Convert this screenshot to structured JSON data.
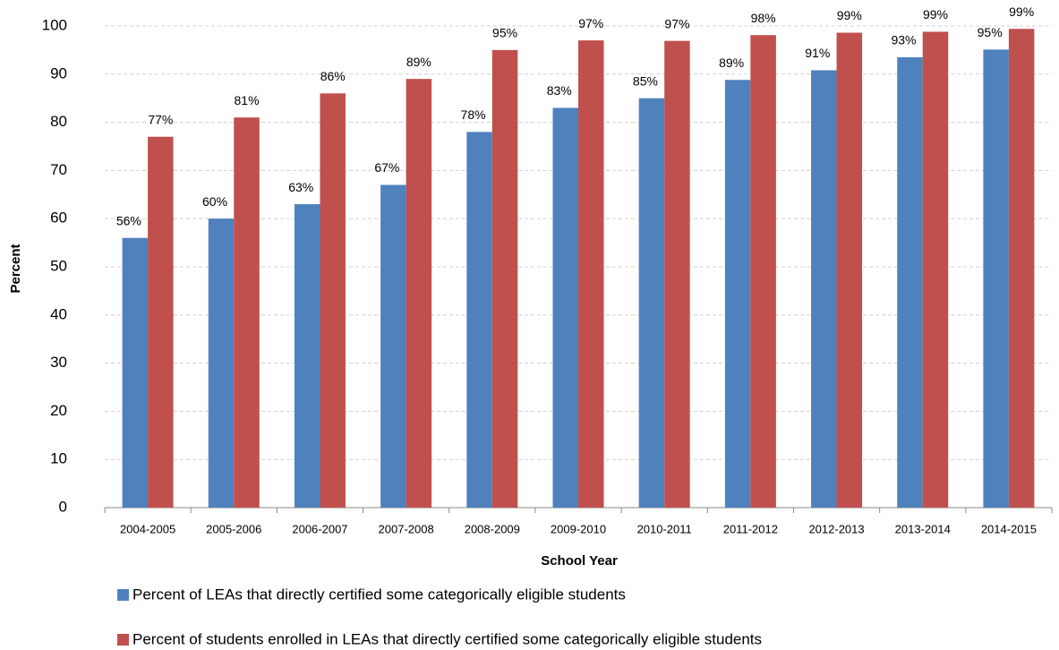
{
  "chart_data": {
    "type": "bar",
    "x_label": "School Year",
    "y_label": "Percent",
    "categories": [
      "2004-2005",
      "2005-2006",
      "2006-2007",
      "2007-2008",
      "2008-2009",
      "2009-2010",
      "2010-2011",
      "2011-2012",
      "2012-2013",
      "2013-2014",
      "2014-2015"
    ],
    "series": [
      {
        "name": "Percent of LEAs that directly certified some categorically eligible students",
        "color": "#4f81bd",
        "values": [
          56,
          60,
          63,
          67,
          78,
          83,
          85,
          88.8,
          90.8,
          93.5,
          95.1
        ],
        "value_labels": [
          "56%",
          "60%",
          "63%",
          "67%",
          "78%",
          "83%",
          "85%",
          "89%",
          "91%",
          "93%",
          "95%"
        ]
      },
      {
        "name": "Percent of students enrolled in LEAs that directly certified some categorically eligible students",
        "color": "#c0504d",
        "values": [
          77,
          81,
          86,
          89,
          95,
          97,
          96.9,
          98.1,
          98.6,
          98.8,
          99.4
        ],
        "value_labels": [
          "77%",
          "81%",
          "86%",
          "89%",
          "95%",
          "97%",
          "97%",
          "98%",
          "99%",
          "99%",
          "99%"
        ]
      }
    ],
    "ylim": [
      0,
      100
    ],
    "yticks": [
      0,
      10,
      20,
      30,
      40,
      50,
      60,
      70,
      80,
      90,
      100
    ],
    "grid": true
  }
}
